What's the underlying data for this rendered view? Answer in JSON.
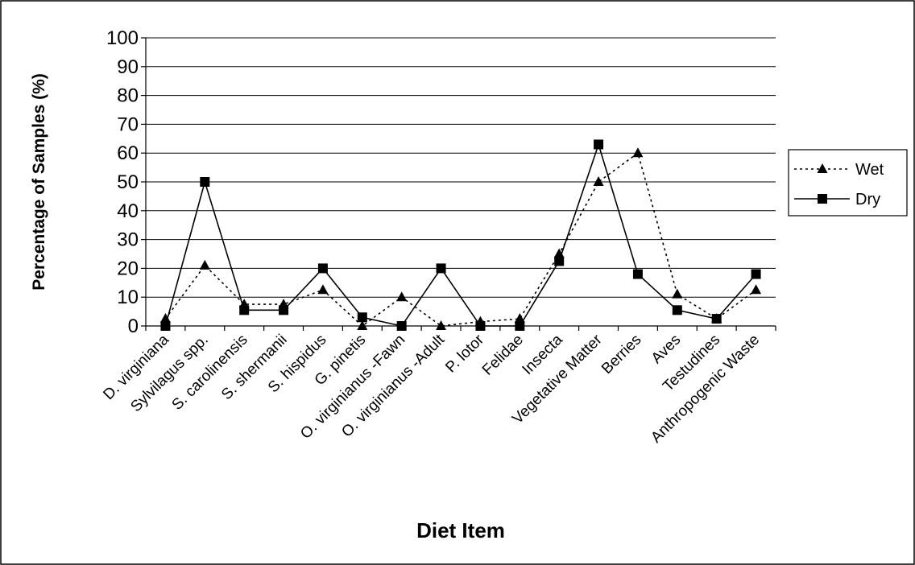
{
  "chart_data": {
    "type": "line",
    "title": "",
    "xlabel": "Diet Item",
    "ylabel": "Percentage of Samples (%)",
    "ylim": [
      0,
      100
    ],
    "yticks": [
      "0",
      "10",
      "20",
      "30",
      "40",
      "50",
      "60",
      "70",
      "80",
      "90",
      "100"
    ],
    "grid": true,
    "legend_position": "right",
    "categories": [
      "D. virginiana",
      "Sylvilagus spp.",
      "S. carolinensis",
      "S. shermanii",
      "S. hispidus",
      "G. pinetis",
      "O. virginianus -Fawn",
      "O. virginianus -Adult",
      "P. lotor",
      "Felidae",
      "Insecta",
      "Vegetative Matter",
      "Berries",
      "Aves",
      "Testudines",
      "Anthropogenic Waste"
    ],
    "series": [
      {
        "name": "Wet",
        "line_style": "dotted",
        "marker": "triangle",
        "values": [
          2.5,
          21,
          7.5,
          7.5,
          12.5,
          0,
          10,
          0,
          1.5,
          2.5,
          25,
          50,
          60,
          11,
          2.5,
          12.5
        ]
      },
      {
        "name": "Dry",
        "line_style": "solid",
        "marker": "square",
        "values": [
          0,
          50,
          5.5,
          5.5,
          20,
          3,
          0,
          20,
          0,
          0,
          22.5,
          63,
          18,
          5.5,
          2.5,
          18
        ]
      }
    ]
  }
}
